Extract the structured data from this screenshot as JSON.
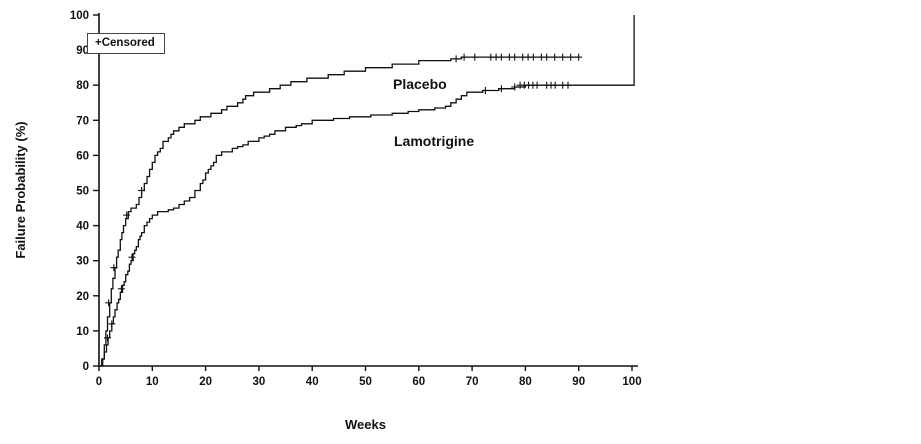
{
  "legend": {
    "symbol": "+",
    "label": "Censored"
  },
  "chart_data": {
    "type": "line",
    "subtype": "kaplan-meier-step",
    "title": "",
    "xlabel": "Weeks",
    "ylabel": "Failure Probability (%)",
    "xlim": [
      0,
      100
    ],
    "ylim": [
      0,
      100
    ],
    "xticks": [
      0,
      10,
      20,
      30,
      40,
      50,
      60,
      70,
      80,
      90,
      100
    ],
    "yticks": [
      0,
      10,
      20,
      30,
      40,
      50,
      60,
      70,
      80,
      90,
      100
    ],
    "grid": false,
    "legend_position": "top-left",
    "series": [
      {
        "name": "Placebo",
        "steps": [
          [
            0,
            0
          ],
          [
            0.5,
            2
          ],
          [
            1,
            6
          ],
          [
            1.3,
            10
          ],
          [
            1.6,
            14
          ],
          [
            2,
            18
          ],
          [
            2.3,
            22
          ],
          [
            2.6,
            25
          ],
          [
            3,
            28
          ],
          [
            3.3,
            31
          ],
          [
            3.6,
            33
          ],
          [
            4,
            36
          ],
          [
            4.3,
            38
          ],
          [
            4.6,
            40
          ],
          [
            5,
            42
          ],
          [
            5.5,
            44
          ],
          [
            6,
            45
          ],
          [
            7,
            46
          ],
          [
            7.5,
            48
          ],
          [
            8,
            50
          ],
          [
            8.5,
            52
          ],
          [
            9,
            54
          ],
          [
            9.5,
            56
          ],
          [
            10,
            58
          ],
          [
            10.5,
            60
          ],
          [
            11,
            61
          ],
          [
            11.5,
            62
          ],
          [
            12,
            64
          ],
          [
            13,
            65
          ],
          [
            13.5,
            66
          ],
          [
            14,
            67
          ],
          [
            15,
            68
          ],
          [
            16,
            69
          ],
          [
            18,
            70
          ],
          [
            19,
            71
          ],
          [
            21,
            72
          ],
          [
            23,
            73
          ],
          [
            24,
            74
          ],
          [
            26,
            75
          ],
          [
            27,
            76
          ],
          [
            27.5,
            77
          ],
          [
            29,
            78
          ],
          [
            32,
            79
          ],
          [
            34,
            80
          ],
          [
            36,
            81
          ],
          [
            39,
            82
          ],
          [
            43,
            83
          ],
          [
            46,
            84
          ],
          [
            50,
            85
          ],
          [
            55,
            86
          ],
          [
            60,
            87
          ],
          [
            66,
            87.5
          ],
          [
            68,
            88
          ],
          [
            90,
            88
          ]
        ],
        "censored": [
          [
            1.8,
            18
          ],
          [
            2.8,
            28
          ],
          [
            5.2,
            43
          ],
          [
            8,
            50
          ],
          [
            67,
            87.5
          ],
          [
            68.5,
            88
          ],
          [
            70.5,
            88
          ],
          [
            73.5,
            88
          ],
          [
            74.5,
            88
          ],
          [
            75.5,
            88
          ],
          [
            77,
            88
          ],
          [
            78,
            88
          ],
          [
            79.5,
            88
          ],
          [
            80.5,
            88
          ],
          [
            81.5,
            88
          ],
          [
            83,
            88
          ],
          [
            84,
            88
          ],
          [
            85.5,
            88
          ],
          [
            87,
            88
          ],
          [
            88.5,
            88
          ],
          [
            90,
            88
          ]
        ]
      },
      {
        "name": "Lamotrigine",
        "steps": [
          [
            0,
            0
          ],
          [
            0.7,
            2
          ],
          [
            1,
            4
          ],
          [
            1.4,
            6
          ],
          [
            1.7,
            8
          ],
          [
            2,
            10
          ],
          [
            2.4,
            12
          ],
          [
            2.7,
            14
          ],
          [
            3,
            16
          ],
          [
            3.4,
            18
          ],
          [
            3.7,
            19
          ],
          [
            4,
            21
          ],
          [
            4.4,
            23
          ],
          [
            4.7,
            24
          ],
          [
            5,
            26
          ],
          [
            5.4,
            27
          ],
          [
            5.7,
            29
          ],
          [
            6,
            30
          ],
          [
            6.4,
            32
          ],
          [
            6.7,
            33
          ],
          [
            7,
            34
          ],
          [
            7.4,
            36
          ],
          [
            7.7,
            37
          ],
          [
            8,
            38
          ],
          [
            8.5,
            40
          ],
          [
            9,
            41
          ],
          [
            9.5,
            42
          ],
          [
            10,
            43
          ],
          [
            11,
            44
          ],
          [
            13,
            44.5
          ],
          [
            14,
            45
          ],
          [
            15,
            46
          ],
          [
            16,
            47
          ],
          [
            17,
            48
          ],
          [
            18,
            50
          ],
          [
            19,
            52
          ],
          [
            19.5,
            53
          ],
          [
            20,
            55
          ],
          [
            20.5,
            56
          ],
          [
            21,
            57
          ],
          [
            21.5,
            58
          ],
          [
            22,
            60
          ],
          [
            23,
            61
          ],
          [
            25,
            62
          ],
          [
            26,
            62.5
          ],
          [
            27,
            63
          ],
          [
            28,
            64
          ],
          [
            30,
            65
          ],
          [
            31,
            65.5
          ],
          [
            32,
            66
          ],
          [
            33,
            67
          ],
          [
            35,
            68
          ],
          [
            37,
            68.5
          ],
          [
            38,
            69
          ],
          [
            40,
            70
          ],
          [
            44,
            70.5
          ],
          [
            47,
            71
          ],
          [
            51,
            71.5
          ],
          [
            55,
            72
          ],
          [
            58,
            72.5
          ],
          [
            60,
            73
          ],
          [
            63,
            73.5
          ],
          [
            65,
            74
          ],
          [
            66,
            75
          ],
          [
            67,
            76
          ],
          [
            68,
            77
          ],
          [
            69,
            78
          ],
          [
            72,
            78.5
          ],
          [
            75,
            79
          ],
          [
            78,
            79.5
          ],
          [
            80,
            80
          ],
          [
            100,
            80
          ],
          [
            100.4,
            100
          ]
        ],
        "censored": [
          [
            1.6,
            8
          ],
          [
            2.4,
            12
          ],
          [
            4.2,
            22
          ],
          [
            6.2,
            31
          ],
          [
            72.5,
            78.5
          ],
          [
            75.5,
            79
          ],
          [
            78,
            79.5
          ],
          [
            79,
            80
          ],
          [
            79.8,
            80
          ],
          [
            80.6,
            80
          ],
          [
            81.4,
            80
          ],
          [
            82.2,
            80
          ],
          [
            84,
            80
          ],
          [
            84.8,
            80
          ],
          [
            85.6,
            80
          ],
          [
            87,
            80
          ],
          [
            88,
            80
          ]
        ]
      }
    ]
  }
}
